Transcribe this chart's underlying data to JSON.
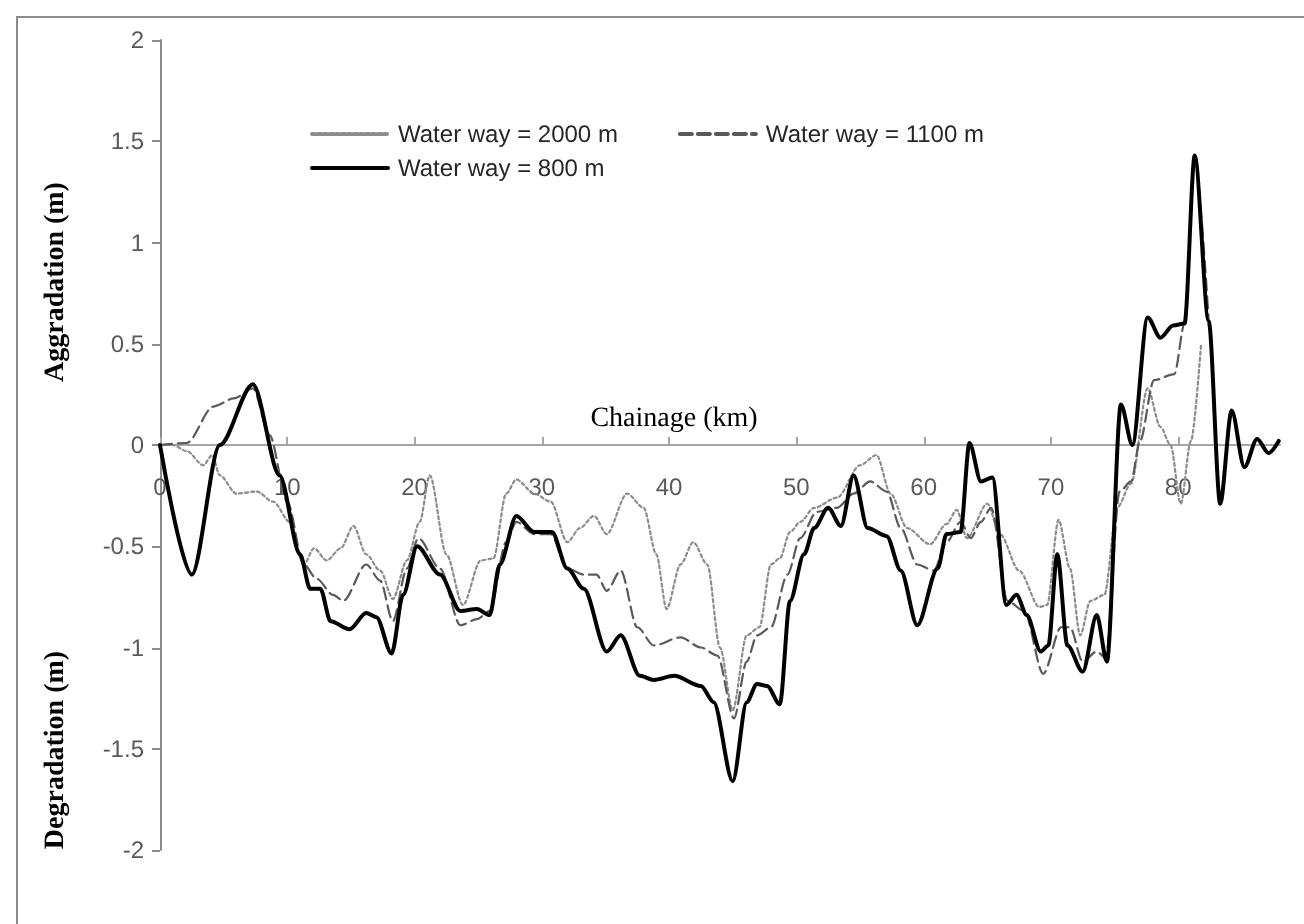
{
  "chart_data": {
    "type": "line",
    "xlabel": "Chainage (km)",
    "ylabel": "Aggradation (m)",
    "annotations": [
      "Degradation (m)"
    ],
    "xlim": [
      0,
      88
    ],
    "xticks": [
      0,
      10,
      20,
      30,
      40,
      50,
      60,
      70,
      80
    ],
    "ylim": [
      -2,
      2
    ],
    "yticks": [
      -2,
      -1.5,
      -1,
      -0.5,
      0,
      0.5,
      1,
      1.5,
      2
    ],
    "grid": false,
    "legend": "top",
    "marker": "none",
    "series": [
      {
        "name": "Water way = 2000 m",
        "color": "#8c8c8c",
        "line_style": "dotted",
        "x": [
          0,
          1.0,
          2.1,
          3.4,
          4.1,
          4.7,
          6.0,
          7.6,
          8.9,
          10.2,
          11.3,
          12.1,
          13.1,
          14.2,
          15.2,
          16.2,
          17.3,
          18.3,
          19.4,
          20.4,
          21.2,
          22.5,
          23.8,
          25.2,
          26.2,
          27.2,
          28.0,
          29.4,
          30.7,
          32.0,
          33.0,
          34.1,
          35.1,
          36.7,
          38.0,
          39.0,
          39.8,
          40.9,
          41.9,
          43.0,
          44.0,
          45.0,
          46.1,
          47.1,
          48.0,
          48.7,
          49.5,
          50.3,
          51.4,
          53.2,
          55.0,
          56.3,
          57.4,
          58.7,
          60.5,
          61.8,
          62.6,
          63.4,
          65.0,
          66.0,
          67.5,
          69.1,
          69.7,
          70.6,
          71.5,
          72.3,
          73.1,
          74.2,
          75.2,
          76.3,
          77.6,
          78.6,
          79.4,
          80.2,
          81.0,
          81.8
        ],
        "values": [
          0,
          0,
          -0.03,
          -0.1,
          -0.05,
          -0.15,
          -0.24,
          -0.23,
          -0.28,
          -0.38,
          -0.59,
          -0.51,
          -0.57,
          -0.51,
          -0.4,
          -0.54,
          -0.62,
          -0.76,
          -0.57,
          -0.38,
          -0.15,
          -0.54,
          -0.79,
          -0.57,
          -0.56,
          -0.24,
          -0.17,
          -0.24,
          -0.28,
          -0.48,
          -0.41,
          -0.35,
          -0.44,
          -0.24,
          -0.31,
          -0.54,
          -0.81,
          -0.59,
          -0.48,
          -0.59,
          -1.0,
          -1.31,
          -0.94,
          -0.9,
          -0.59,
          -0.56,
          -0.43,
          -0.38,
          -0.31,
          -0.26,
          -0.1,
          -0.05,
          -0.24,
          -0.41,
          -0.49,
          -0.39,
          -0.32,
          -0.46,
          -0.29,
          -0.44,
          -0.62,
          -0.8,
          -0.79,
          -0.37,
          -0.61,
          -0.94,
          -0.77,
          -0.74,
          -0.31,
          -0.19,
          0.28,
          0.09,
          0.0,
          -0.29,
          0.02,
          0.5
        ]
      },
      {
        "name": "Water way = 1100 m",
        "color": "#595959",
        "line_style": "dashed",
        "x": [
          0,
          2.1,
          4.2,
          5.8,
          7.3,
          8.6,
          10.0,
          11.3,
          12.3,
          13.6,
          14.4,
          16.2,
          17.3,
          18.3,
          19.4,
          20.3,
          22.0,
          23.6,
          24.9,
          25.9,
          27.2,
          28.0,
          29.4,
          30.7,
          32.0,
          33.3,
          34.3,
          35.1,
          36.2,
          37.5,
          38.8,
          40.9,
          42.5,
          43.8,
          45.1,
          46.1,
          46.9,
          48.0,
          49.3,
          50.3,
          51.6,
          53.2,
          54.5,
          55.8,
          57.1,
          58.2,
          59.5,
          60.8,
          61.8,
          62.9,
          63.7,
          64.5,
          65.3,
          66.6,
          67.9,
          69.4,
          70.8,
          71.5,
          72.5,
          73.6,
          74.3,
          75.4,
          76.3,
          77.0,
          78.1,
          79.7,
          80.5,
          81.3,
          82.4
        ],
        "values": [
          0,
          0.01,
          0.19,
          0.23,
          0.28,
          0.05,
          -0.28,
          -0.59,
          -0.66,
          -0.74,
          -0.77,
          -0.59,
          -0.67,
          -0.87,
          -0.61,
          -0.46,
          -0.61,
          -0.89,
          -0.86,
          -0.82,
          -0.48,
          -0.38,
          -0.44,
          -0.44,
          -0.61,
          -0.64,
          -0.64,
          -0.72,
          -0.62,
          -0.9,
          -0.99,
          -0.95,
          -1.0,
          -1.04,
          -1.35,
          -1.07,
          -0.94,
          -0.9,
          -0.64,
          -0.46,
          -0.33,
          -0.31,
          -0.24,
          -0.18,
          -0.23,
          -0.41,
          -0.59,
          -0.62,
          -0.48,
          -0.38,
          -0.46,
          -0.38,
          -0.31,
          -0.77,
          -0.82,
          -1.13,
          -0.9,
          -0.9,
          -1.07,
          -1.02,
          -1.05,
          -0.23,
          -0.18,
          0.02,
          0.32,
          0.35,
          0.6,
          1.4,
          0.61
        ]
      },
      {
        "name": "Water way = 800 m",
        "color": "#000000",
        "line_style": "solid",
        "x": [
          0,
          2.5,
          4.7,
          7.3,
          9.4,
          11.0,
          11.8,
          12.6,
          13.4,
          14.9,
          16.2,
          17.0,
          18.2,
          19.1,
          20.2,
          22.0,
          23.6,
          24.9,
          25.9,
          26.7,
          28.0,
          29.4,
          30.8,
          32.0,
          33.3,
          35.1,
          36.2,
          37.7,
          38.8,
          40.4,
          42.5,
          43.5,
          45.0,
          46.1,
          46.9,
          47.7,
          48.7,
          49.5,
          50.6,
          51.4,
          52.5,
          53.5,
          54.5,
          55.6,
          57.1,
          58.2,
          59.5,
          61.1,
          61.8,
          62.9,
          63.6,
          64.5,
          65.4,
          66.5,
          67.3,
          68.1,
          69.2,
          69.8,
          70.5,
          71.3,
          72.5,
          73.6,
          74.4,
          75.5,
          76.4,
          77.6,
          78.6,
          79.6,
          80.5,
          81.3,
          82.4,
          83.3,
          84.2,
          85.2,
          86.2,
          87.1,
          87.9
        ],
        "values": [
          0,
          -0.64,
          0,
          0.3,
          -0.15,
          -0.54,
          -0.71,
          -0.71,
          -0.87,
          -0.91,
          -0.83,
          -0.85,
          -1.03,
          -0.74,
          -0.5,
          -0.64,
          -0.82,
          -0.81,
          -0.84,
          -0.59,
          -0.35,
          -0.43,
          -0.43,
          -0.61,
          -0.71,
          -1.02,
          -0.94,
          -1.14,
          -1.16,
          -1.14,
          -1.19,
          -1.27,
          -1.66,
          -1.27,
          -1.18,
          -1.19,
          -1.28,
          -0.77,
          -0.54,
          -0.41,
          -0.31,
          -0.4,
          -0.15,
          -0.41,
          -0.45,
          -0.62,
          -0.89,
          -0.61,
          -0.44,
          -0.43,
          0.01,
          -0.18,
          -0.16,
          -0.79,
          -0.74,
          -0.84,
          -1.02,
          -0.99,
          -0.54,
          -0.99,
          -1.12,
          -0.84,
          -1.07,
          0.2,
          0.0,
          0.63,
          0.53,
          0.59,
          0.6,
          1.43,
          0.61,
          -0.29,
          0.17,
          -0.11,
          0.03,
          -0.04,
          0.02
        ]
      }
    ]
  }
}
